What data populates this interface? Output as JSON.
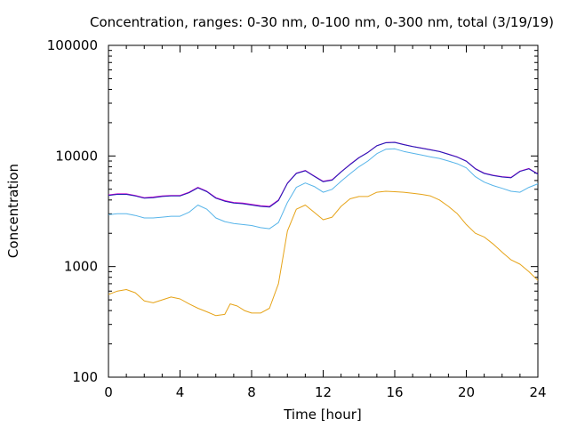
{
  "chart_data": {
    "type": "line",
    "title": "Concentration, ranges: 0-30 nm, 0-100 nm, 0-300 nm, total (3/19/19)",
    "xlabel": "Time [hour]",
    "ylabel": "Concentration",
    "xlim": [
      0,
      24
    ],
    "ylim": [
      100,
      100000
    ],
    "yscale": "log",
    "xticks": [
      0,
      4,
      8,
      12,
      16,
      20,
      24
    ],
    "xtick_labels": [
      "0",
      "4",
      "8",
      "12",
      "16",
      "20",
      "24"
    ],
    "yticks": [
      100,
      1000,
      10000,
      100000
    ],
    "ytick_labels": [
      "100",
      "1000",
      "10000",
      "100000"
    ],
    "grid": false,
    "legend": "none",
    "series": [
      {
        "color": "#e6a317",
        "x": [
          0,
          0.5,
          1,
          1.5,
          2,
          2.5,
          3,
          3.5,
          4,
          4.5,
          5,
          5.5,
          6,
          6.5,
          6.8,
          7.2,
          7.6,
          8,
          8.5,
          9,
          9.5,
          10,
          10.5,
          11,
          11.5,
          12,
          12.5,
          13,
          13.5,
          14,
          14.5,
          15,
          15.5,
          16,
          16.5,
          17,
          17.5,
          18,
          18.5,
          19,
          19.5,
          20,
          20.5,
          21,
          21.5,
          22,
          22.5,
          23,
          23.5,
          24
        ],
        "y": [
          560,
          600,
          620,
          580,
          490,
          470,
          500,
          530,
          510,
          460,
          420,
          390,
          360,
          370,
          460,
          440,
          400,
          380,
          380,
          420,
          700,
          2100,
          3300,
          3600,
          3100,
          2650,
          2800,
          3500,
          4100,
          4300,
          4300,
          4700,
          4800,
          4750,
          4700,
          4600,
          4500,
          4350,
          4000,
          3500,
          3000,
          2400,
          2000,
          1850,
          1600,
          1350,
          1150,
          1050,
          900,
          750
        ]
      },
      {
        "color": "#56b4e9",
        "x": [
          0,
          0.5,
          1,
          1.5,
          2,
          2.5,
          3,
          3.5,
          4,
          4.5,
          5,
          5.5,
          6,
          6.5,
          7,
          7.5,
          8,
          8.5,
          9,
          9.5,
          10,
          10.5,
          11,
          11.5,
          12,
          12.5,
          13,
          13.5,
          14,
          14.5,
          15,
          15.5,
          16,
          16.5,
          17,
          17.5,
          18,
          18.5,
          19,
          19.5,
          20,
          20.5,
          21,
          21.5,
          22,
          22.5,
          23,
          23.5,
          24
        ],
        "y": [
          2950,
          3000,
          3000,
          2900,
          2750,
          2750,
          2800,
          2850,
          2850,
          3100,
          3600,
          3300,
          2750,
          2550,
          2450,
          2400,
          2350,
          2250,
          2200,
          2500,
          3800,
          5200,
          5700,
          5300,
          4700,
          5000,
          5900,
          6900,
          8000,
          9000,
          10500,
          11500,
          11600,
          11000,
          10600,
          10200,
          9800,
          9500,
          9000,
          8500,
          7800,
          6500,
          5800,
          5400,
          5100,
          4800,
          4700,
          5200,
          5600
        ]
      },
      {
        "color": "#cc00cc",
        "x": [
          0,
          0.5,
          1,
          1.5,
          2,
          2.5,
          3,
          3.5,
          4,
          4.5,
          5,
          5.5,
          6,
          6.5,
          7,
          7.5,
          8,
          8.5,
          9,
          9.5,
          10,
          10.5,
          11,
          11.5,
          12,
          12.5,
          13,
          13.5,
          14,
          14.5,
          15,
          15.5,
          16,
          16.5,
          17,
          17.5,
          18,
          18.5,
          19,
          19.5,
          20,
          20.5,
          21,
          21.5,
          22,
          22.5,
          23,
          23.5,
          24
        ],
        "y": [
          4450,
          4550,
          4550,
          4400,
          4200,
          4250,
          4350,
          4400,
          4400,
          4700,
          5200,
          4800,
          4200,
          3950,
          3800,
          3750,
          3650,
          3550,
          3500,
          4000,
          5700,
          7000,
          7400,
          6600,
          5900,
          6100,
          7200,
          8400,
          9700,
          10800,
          12400,
          13200,
          13300,
          12700,
          12200,
          11800,
          11400,
          11000,
          10400,
          9800,
          9000,
          7700,
          7000,
          6700,
          6500,
          6400,
          7300,
          7700,
          6900
        ]
      },
      {
        "color": "#1f1fb4",
        "x": [
          0,
          0.5,
          1,
          1.5,
          2,
          2.5,
          3,
          3.5,
          4,
          4.5,
          5,
          5.5,
          6,
          6.5,
          7,
          7.5,
          8,
          8.5,
          9,
          9.5,
          10,
          10.5,
          11,
          11.5,
          12,
          12.5,
          13,
          13.5,
          14,
          14.5,
          15,
          15.5,
          16,
          16.5,
          17,
          17.5,
          18,
          18.5,
          19,
          19.5,
          20,
          20.5,
          21,
          21.5,
          22,
          22.5,
          23,
          23.5,
          24
        ],
        "y": [
          4400,
          4500,
          4500,
          4350,
          4150,
          4200,
          4300,
          4350,
          4350,
          4650,
          5150,
          4750,
          4150,
          3900,
          3750,
          3700,
          3600,
          3500,
          3450,
          3950,
          5650,
          6950,
          7350,
          6550,
          5850,
          6050,
          7150,
          8350,
          9650,
          10750,
          12350,
          13150,
          13250,
          12650,
          12150,
          11750,
          11350,
          10950,
          10350,
          9750,
          8950,
          7650,
          6950,
          6650,
          6450,
          6350,
          7250,
          7650,
          6850
        ]
      }
    ]
  }
}
